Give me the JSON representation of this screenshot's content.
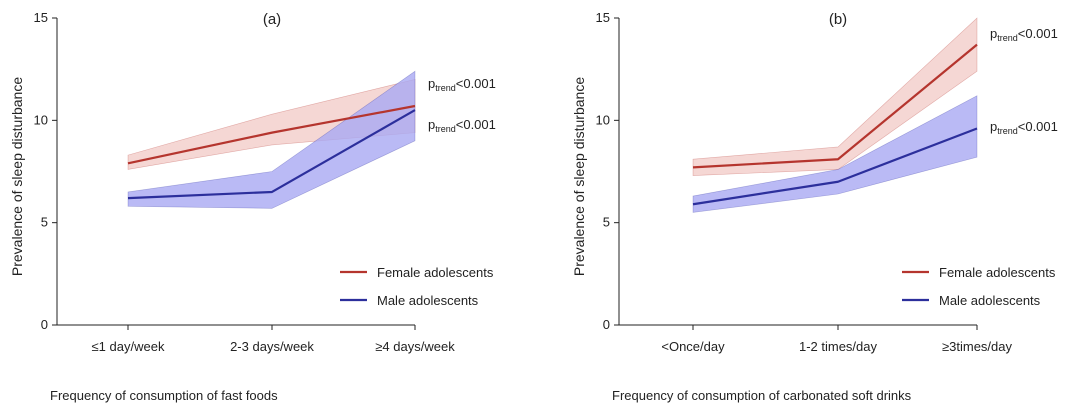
{
  "colors": {
    "female": "#b5352e",
    "female_band": "#f2c9c6",
    "male": "#2c2f9c",
    "male_band": "#a9a9f2",
    "axis": "#222222"
  },
  "chart_data": [
    {
      "type": "line",
      "panel_label": "(a)",
      "xlabel": "Frequency of consumption of fast foods",
      "ylabel": "Prevalence of sleep disturbance",
      "categories": [
        "≤1 day/week",
        "2-3 days/week",
        "≥4 days/week"
      ],
      "ylim": [
        0,
        15
      ],
      "yticks": [
        0,
        5,
        10,
        15
      ],
      "grid": false,
      "legend_position": "lower-right",
      "series": [
        {
          "name": "Female adolescents",
          "color": "#b5352e",
          "values": [
            7.9,
            9.4,
            10.7
          ],
          "lower": [
            7.6,
            8.8,
            9.4
          ],
          "upper": [
            8.3,
            10.3,
            12.0
          ],
          "annotation": {
            "main": "p",
            "sub": "trend",
            "tail": "<0.001"
          }
        },
        {
          "name": "Male adolescents",
          "color": "#2c2f9c",
          "values": [
            6.2,
            6.5,
            10.5
          ],
          "lower": [
            5.8,
            5.7,
            9.0
          ],
          "upper": [
            6.5,
            7.5,
            12.4
          ],
          "annotation": {
            "main": "p",
            "sub": "trend",
            "tail": "<0.001"
          }
        }
      ]
    },
    {
      "type": "line",
      "panel_label": "(b)",
      "xlabel": "Frequency of consumption of carbonated soft drinks",
      "ylabel": "Prevalence of sleep disturbance",
      "categories": [
        "<Once/day",
        "1-2 times/day",
        "≥3times/day"
      ],
      "ylim": [
        0,
        15
      ],
      "yticks": [
        0,
        5,
        10,
        15
      ],
      "grid": false,
      "legend_position": "lower-right",
      "series": [
        {
          "name": "Female adolescents",
          "color": "#b5352e",
          "values": [
            7.7,
            8.1,
            13.7
          ],
          "lower": [
            7.3,
            7.6,
            12.4
          ],
          "upper": [
            8.1,
            8.7,
            15.0
          ],
          "annotation": {
            "main": "p",
            "sub": "trend",
            "tail": "<0.001"
          }
        },
        {
          "name": "Male adolescents",
          "color": "#2c2f9c",
          "values": [
            5.9,
            7.0,
            9.6
          ],
          "lower": [
            5.5,
            6.4,
            8.2
          ],
          "upper": [
            6.3,
            7.6,
            11.2
          ],
          "annotation": {
            "main": "p",
            "sub": "trend",
            "tail": "<0.001"
          }
        }
      ]
    }
  ]
}
